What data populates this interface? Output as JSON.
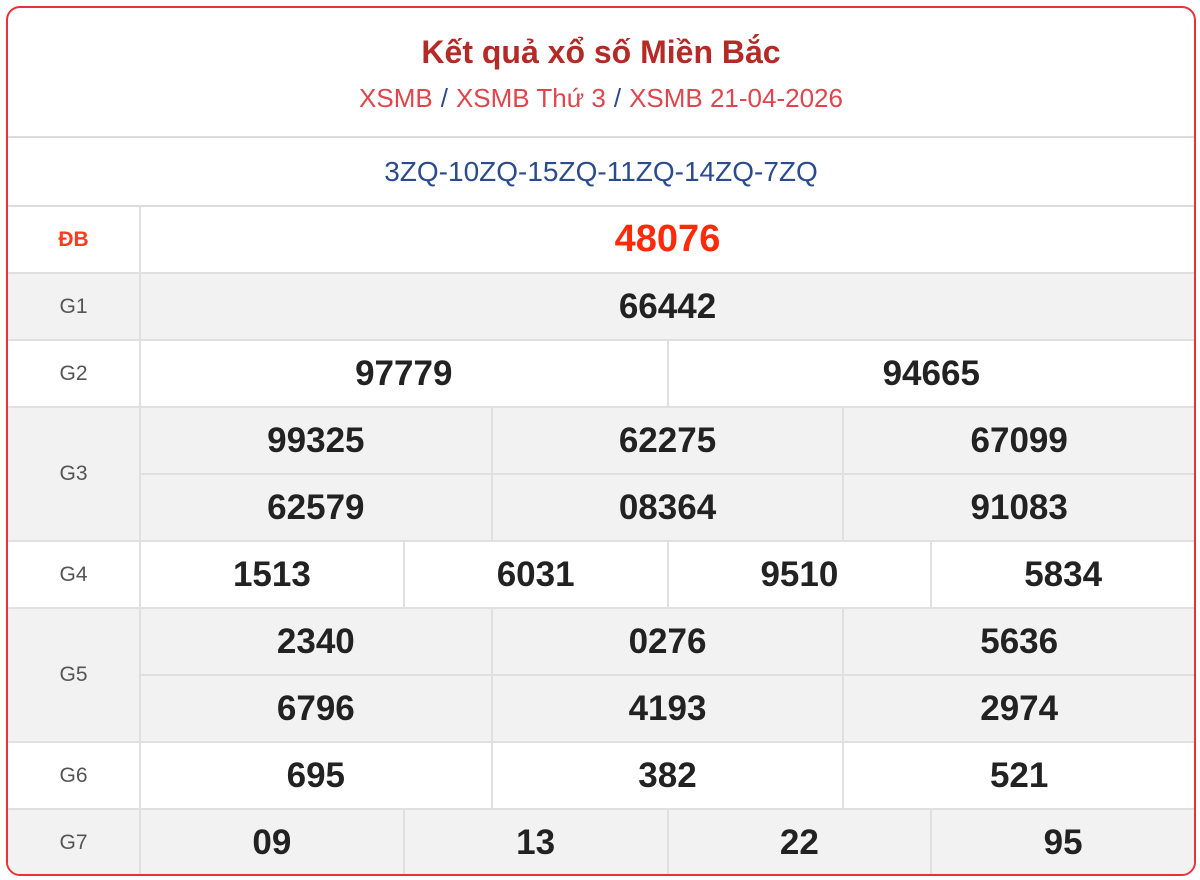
{
  "header": {
    "title": "Kết quả xổ số Miền Bắc",
    "breadcrumbs": [
      "XSMB",
      "XSMB Thứ 3",
      "XSMB 21-04-2026"
    ],
    "separator": "/"
  },
  "codes": "3ZQ-10ZQ-15ZQ-11ZQ-14ZQ-7ZQ",
  "colors": {
    "border": "#e8313a",
    "title": "#b42a27",
    "special": "#ff2a0a",
    "codes": "#2c4b8e"
  },
  "prizes": [
    {
      "label": "ĐB",
      "rows": [
        [
          "48076"
        ]
      ]
    },
    {
      "label": "G1",
      "rows": [
        [
          "66442"
        ]
      ]
    },
    {
      "label": "G2",
      "rows": [
        [
          "97779",
          "94665"
        ]
      ]
    },
    {
      "label": "G3",
      "rows": [
        [
          "99325",
          "62275",
          "67099"
        ],
        [
          "62579",
          "08364",
          "91083"
        ]
      ]
    },
    {
      "label": "G4",
      "rows": [
        [
          "1513",
          "6031",
          "9510",
          "5834"
        ]
      ]
    },
    {
      "label": "G5",
      "rows": [
        [
          "2340",
          "0276",
          "5636"
        ],
        [
          "6796",
          "4193",
          "2974"
        ]
      ]
    },
    {
      "label": "G6",
      "rows": [
        [
          "695",
          "382",
          "521"
        ]
      ]
    },
    {
      "label": "G7",
      "rows": [
        [
          "09",
          "13",
          "22",
          "95"
        ]
      ]
    }
  ]
}
